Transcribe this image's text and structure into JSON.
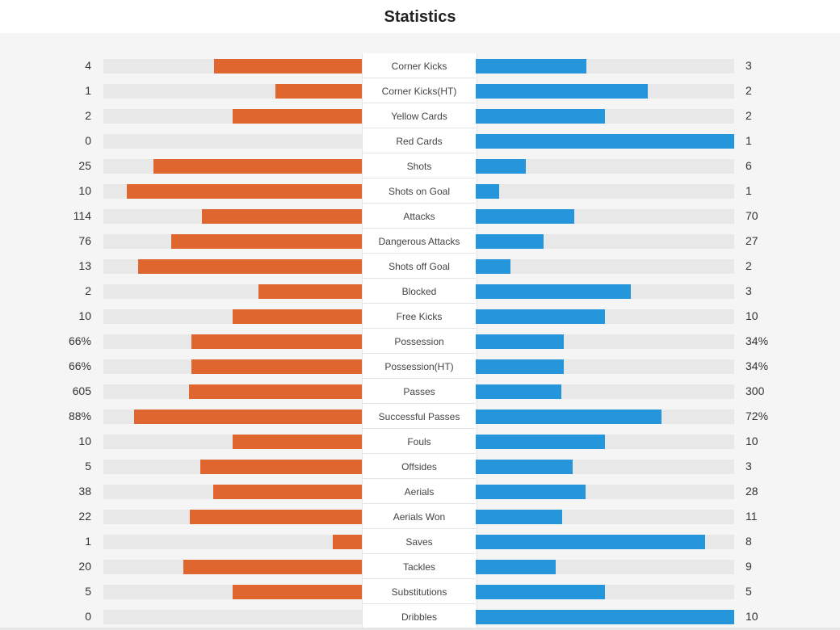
{
  "title": "Statistics",
  "colors": {
    "home": "#e06630",
    "away": "#2595dc",
    "track": "#e8e8e8"
  },
  "stats": [
    {
      "label": "Corner Kicks",
      "home": "4",
      "away": "3",
      "home_share": 0.571,
      "away_share": 0.429
    },
    {
      "label": "Corner Kicks(HT)",
      "home": "1",
      "away": "2",
      "home_share": 0.333,
      "away_share": 0.667
    },
    {
      "label": "Yellow Cards",
      "home": "2",
      "away": "2",
      "home_share": 0.5,
      "away_share": 0.5
    },
    {
      "label": "Red Cards",
      "home": "0",
      "away": "1",
      "home_share": 0,
      "away_share": 1
    },
    {
      "label": "Shots",
      "home": "25",
      "away": "6",
      "home_share": 0.806,
      "away_share": 0.194
    },
    {
      "label": "Shots on Goal",
      "home": "10",
      "away": "1",
      "home_share": 0.909,
      "away_share": 0.091
    },
    {
      "label": "Attacks",
      "home": "114",
      "away": "70",
      "home_share": 0.62,
      "away_share": 0.38
    },
    {
      "label": "Dangerous Attacks",
      "home": "76",
      "away": "27",
      "home_share": 0.738,
      "away_share": 0.262
    },
    {
      "label": "Shots off Goal",
      "home": "13",
      "away": "2",
      "home_share": 0.867,
      "away_share": 0.133
    },
    {
      "label": "Blocked",
      "home": "2",
      "away": "3",
      "home_share": 0.4,
      "away_share": 0.6
    },
    {
      "label": "Free Kicks",
      "home": "10",
      "away": "10",
      "home_share": 0.5,
      "away_share": 0.5
    },
    {
      "label": "Possession",
      "home": "66%",
      "away": "34%",
      "home_share": 0.66,
      "away_share": 0.34
    },
    {
      "label": "Possession(HT)",
      "home": "66%",
      "away": "34%",
      "home_share": 0.66,
      "away_share": 0.34
    },
    {
      "label": "Passes",
      "home": "605",
      "away": "300",
      "home_share": 0.669,
      "away_share": 0.331
    },
    {
      "label": "Successful Passes",
      "home": "88%",
      "away": "72%",
      "home_share": 0.88,
      "away_share": 0.72
    },
    {
      "label": "Fouls",
      "home": "10",
      "away": "10",
      "home_share": 0.5,
      "away_share": 0.5
    },
    {
      "label": "Offsides",
      "home": "5",
      "away": "3",
      "home_share": 0.625,
      "away_share": 0.375
    },
    {
      "label": "Aerials",
      "home": "38",
      "away": "28",
      "home_share": 0.576,
      "away_share": 0.424
    },
    {
      "label": "Aerials Won",
      "home": "22",
      "away": "11",
      "home_share": 0.667,
      "away_share": 0.333
    },
    {
      "label": "Saves",
      "home": "1",
      "away": "8",
      "home_share": 0.111,
      "away_share": 0.889
    },
    {
      "label": "Tackles",
      "home": "20",
      "away": "9",
      "home_share": 0.69,
      "away_share": 0.31
    },
    {
      "label": "Substitutions",
      "home": "5",
      "away": "5",
      "home_share": 0.5,
      "away_share": 0.5
    },
    {
      "label": "Dribbles",
      "home": "0",
      "away": "10",
      "home_share": 0,
      "away_share": 1
    }
  ]
}
